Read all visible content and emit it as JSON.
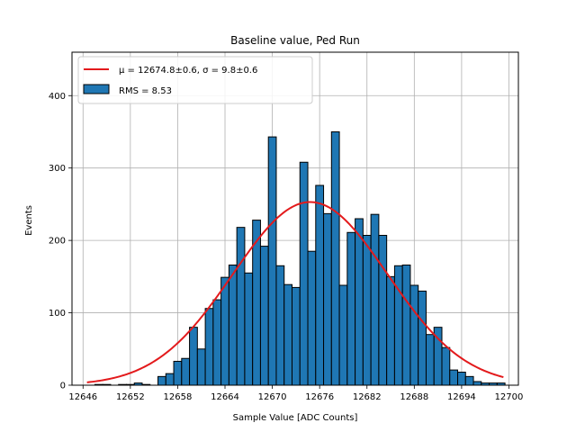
{
  "chart_data": {
    "type": "bar",
    "title": "Baseline value, Ped Run",
    "xlabel": "Sample Value [ADC Counts]",
    "ylabel": "Events",
    "xlim": [
      12644.6,
      12701.2
    ],
    "ylim": [
      0,
      460
    ],
    "grid": true,
    "legend_position": "top-left",
    "x_ticks": [
      12646,
      12652,
      12658,
      12664,
      12670,
      12676,
      12682,
      12688,
      12694,
      12700
    ],
    "y_ticks": [
      0,
      100,
      200,
      300,
      400
    ],
    "histogram": {
      "name": "RMS = 8.53",
      "color": "#1f77b4",
      "edge_color": "#000000",
      "bin_start": 12646.5,
      "bin_width": 1,
      "counts": [
        0,
        1,
        1,
        0,
        1,
        1,
        3,
        1,
        0,
        12,
        16,
        33,
        37,
        80,
        50,
        106,
        118,
        149,
        166,
        218,
        155,
        228,
        192,
        343,
        165,
        139,
        135,
        308,
        185,
        276,
        237,
        350,
        138,
        211,
        230,
        207,
        236,
        207,
        150,
        165,
        166,
        138,
        130,
        70,
        80,
        52,
        21,
        18,
        12,
        5,
        3,
        3,
        3
      ]
    },
    "fit": {
      "name": "Gaussian fit",
      "legend": "μ = 12674.8±0.6, σ = 9.8±0.6",
      "mu": 12674.8,
      "sigma": 9.8,
      "amplitude": 253,
      "x_range": [
        12646.5,
        12699.3
      ],
      "color": "#e31a1c"
    },
    "legend": [
      {
        "label": "μ = 12674.8±0.6, σ = 9.8±0.6",
        "kind": "line",
        "color": "#e31a1c"
      },
      {
        "label": "RMS = 8.53",
        "kind": "patch",
        "color": "#1f77b4"
      }
    ]
  }
}
